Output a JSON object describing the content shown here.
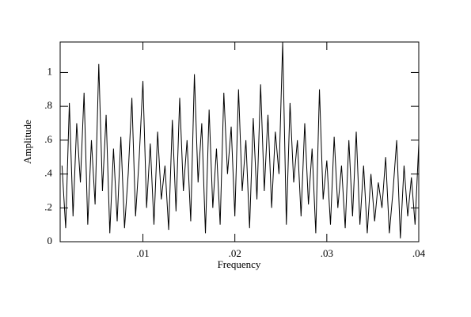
{
  "chart_data": {
    "type": "line",
    "x_label": "Frequency",
    "y_label": "Amplitude",
    "x": [
      0.0012,
      0.0016,
      0.002,
      0.0024,
      0.0028,
      0.0032,
      0.0036,
      0.004,
      0.0044,
      0.0048,
      0.0052,
      0.0056,
      0.006,
      0.0064,
      0.0068,
      0.0072,
      0.0076,
      0.008,
      0.0084,
      0.0088,
      0.0092,
      0.0096,
      0.01,
      0.0104,
      0.0108,
      0.0112,
      0.0116,
      0.012,
      0.0124,
      0.0128,
      0.0132,
      0.0136,
      0.014,
      0.0144,
      0.0148,
      0.0152,
      0.0156,
      0.016,
      0.0164,
      0.0168,
      0.0172,
      0.0176,
      0.018,
      0.0184,
      0.0188,
      0.0192,
      0.0196,
      0.02,
      0.0204,
      0.0208,
      0.0212,
      0.0216,
      0.022,
      0.0224,
      0.0228,
      0.0232,
      0.0236,
      0.024,
      0.0244,
      0.0248,
      0.0252,
      0.0256,
      0.026,
      0.0264,
      0.0268,
      0.0272,
      0.0276,
      0.028,
      0.0284,
      0.0288,
      0.0292,
      0.0296,
      0.03,
      0.0304,
      0.0308,
      0.0312,
      0.0316,
      0.032,
      0.0324,
      0.0328,
      0.0332,
      0.0336,
      0.034,
      0.0344,
      0.0348,
      0.0352,
      0.0356,
      0.036,
      0.0364,
      0.0368,
      0.0372,
      0.0376,
      0.038,
      0.0384,
      0.0388,
      0.0392,
      0.0396,
      0.04
    ],
    "values": [
      0.45,
      0.08,
      0.82,
      0.15,
      0.7,
      0.35,
      0.88,
      0.1,
      0.6,
      0.22,
      1.05,
      0.3,
      0.75,
      0.05,
      0.55,
      0.12,
      0.62,
      0.08,
      0.4,
      0.85,
      0.15,
      0.5,
      0.95,
      0.2,
      0.58,
      0.1,
      0.65,
      0.25,
      0.45,
      0.07,
      0.72,
      0.18,
      0.85,
      0.3,
      0.6,
      0.12,
      0.99,
      0.35,
      0.7,
      0.05,
      0.78,
      0.2,
      0.55,
      0.1,
      0.88,
      0.4,
      0.68,
      0.15,
      0.9,
      0.3,
      0.6,
      0.08,
      0.73,
      0.25,
      0.93,
      0.3,
      0.75,
      0.2,
      0.65,
      0.4,
      1.18,
      0.1,
      0.82,
      0.35,
      0.6,
      0.15,
      0.7,
      0.22,
      0.55,
      0.05,
      0.9,
      0.25,
      0.48,
      0.1,
      0.62,
      0.2,
      0.45,
      0.08,
      0.6,
      0.15,
      0.65,
      0.1,
      0.45,
      0.05,
      0.4,
      0.12,
      0.35,
      0.2,
      0.5,
      0.05,
      0.3,
      0.6,
      0.02,
      0.45,
      0.15,
      0.38,
      0.1,
      0.58
    ],
    "color": "#000000",
    "xlim": [
      0.001,
      0.04
    ],
    "xticks": [
      {
        "value": 0.01,
        "label": ".01"
      },
      {
        "value": 0.02,
        "label": ".02"
      },
      {
        "value": 0.03,
        "label": ".03"
      },
      {
        "value": 0.04,
        "label": ".04"
      }
    ],
    "ylim": [
      0,
      1.18
    ],
    "yticks": [
      0,
      {
        "value": 0.2,
        "label": ".2"
      },
      {
        "value": 0.4,
        "label": ".4"
      },
      {
        "value": 0.6,
        "label": ".6"
      },
      {
        "value": 0.8,
        "label": ".8"
      },
      1
    ],
    "grid": false
  }
}
